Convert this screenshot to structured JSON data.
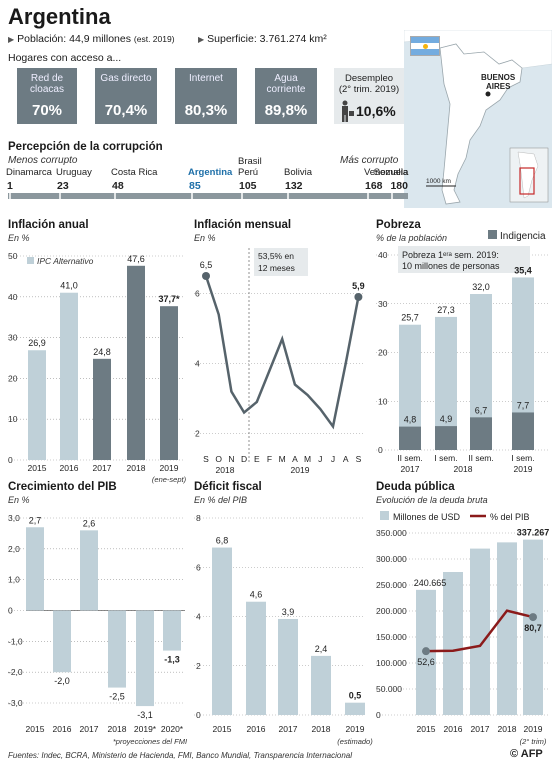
{
  "header": {
    "title": "Argentina",
    "population": "Población: 44,9 millones",
    "population_note": "(est. 2019)",
    "area": "Superficie: 3.761.274 km²",
    "access_title": "Hogares con acceso a..."
  },
  "access": [
    {
      "label": "Red de cloacas",
      "value": "70%"
    },
    {
      "label": "Gas directo",
      "value": "70,4%"
    },
    {
      "label": "Internet",
      "value": "80,3%"
    },
    {
      "label": "Agua corriente",
      "value": "89,8%"
    }
  ],
  "unemployment": {
    "label": "Desempleo",
    "period": "(2° trim. 2019)",
    "value": "10,6%"
  },
  "map": {
    "city": "BUENOS AIRES",
    "scale": "1000 km"
  },
  "corruption": {
    "title": "Percepción de la corrupción",
    "less": "Menos corrupto",
    "more": "Más corrupto",
    "countries": [
      {
        "name": "Dinamarca",
        "rank": "1"
      },
      {
        "name": "Uruguay",
        "rank": "23"
      },
      {
        "name": "Costa Rica",
        "rank": "48"
      },
      {
        "name": "Argentina",
        "rank": "85"
      },
      {
        "name": "Brasil",
        "name2": "Perú",
        "rank": "105"
      },
      {
        "name": "Bolivia",
        "rank": "132"
      },
      {
        "name": "Venezuela",
        "rank": "168"
      },
      {
        "name": "Somalia",
        "rank": "180"
      }
    ]
  },
  "colors": {
    "light": "#bfd0d8",
    "dark": "#6d7b83",
    "red": "#8b1a1a",
    "line": "#56636b",
    "highlight": "#1e6fa8"
  },
  "charts": {
    "inflacion_anual": {
      "title": "Inflación anual",
      "unit": "En %",
      "legend": "IPC Alternativo",
      "note": "(ene-sept)"
    },
    "inflacion_mensual": {
      "title": "Inflación mensual",
      "unit": "En %",
      "annotation": "53,5% en 12 meses",
      "year1": "2018",
      "year2": "2019"
    },
    "pobreza": {
      "title": "Pobreza",
      "unit": "% de la población",
      "legend": "Indigencia",
      "annotation": "Pobreza 1ᵉʳᵃ sem. 2019: 10 millones de personas"
    },
    "pib": {
      "title": "Crecimiento del PIB",
      "unit": "En %",
      "note": "*proyecciones del FMI"
    },
    "deficit": {
      "title": "Déficit fiscal",
      "unit": "En % del PIB",
      "note": "(estimado)"
    },
    "deuda": {
      "title": "Deuda pública",
      "unit": "Evolución de la deuda bruta",
      "legend_bars": "Millones de USD",
      "legend_line": "% del PIB",
      "note": "(2° trim)"
    }
  },
  "chart_data": [
    {
      "type": "bar",
      "title": "Inflación anual",
      "ylabel": "En %",
      "categories": [
        "2015",
        "2016",
        "2017",
        "2018",
        "2019"
      ],
      "values": [
        26.9,
        41.0,
        24.8,
        47.6,
        37.7
      ],
      "labels": [
        "26,9",
        "41,0",
        "24,8",
        "47,6",
        "37,7*"
      ],
      "ylim": [
        0,
        50
      ],
      "yticks": [
        "0",
        "10",
        "20",
        "30",
        "40",
        "50"
      ]
    },
    {
      "type": "line",
      "title": "Inflación mensual",
      "ylabel": "En %",
      "categories": [
        "S",
        "O",
        "N",
        "D",
        "E",
        "F",
        "M",
        "A",
        "M",
        "J",
        "J",
        "A",
        "S"
      ],
      "values": [
        6.5,
        5.4,
        3.2,
        2.6,
        2.9,
        3.8,
        4.7,
        3.4,
        3.1,
        2.7,
        2.2,
        4.0,
        5.9
      ],
      "labels": {
        "0": "6,5",
        "12": "5,9"
      },
      "ylim": [
        2,
        7
      ],
      "yticks": [
        "2",
        "4",
        "6"
      ]
    },
    {
      "type": "bar",
      "title": "Pobreza",
      "ylabel": "% de la población",
      "categories": [
        "II sem. 2017",
        "I sem. 2018",
        "II sem. 2018",
        "I sem. 2019"
      ],
      "cat_line1": [
        "II sem.",
        "I sem.",
        "II sem.",
        "I sem."
      ],
      "cat_line2": [
        "2017",
        "",
        "",
        "2019"
      ],
      "cat_year_mid": "2018",
      "series": [
        {
          "name": "Pobreza",
          "values": [
            25.7,
            27.3,
            32.0,
            35.4
          ],
          "labels": [
            "25,7",
            "27,3",
            "32,0",
            "35,4"
          ]
        },
        {
          "name": "Indigencia",
          "values": [
            4.8,
            4.9,
            6.7,
            7.7
          ],
          "labels": [
            "4,8",
            "4,9",
            "6,7",
            "7,7"
          ]
        }
      ],
      "ylim": [
        0,
        40
      ],
      "yticks": [
        "0",
        "10",
        "20",
        "30",
        "40"
      ]
    },
    {
      "type": "bar",
      "title": "Crecimiento del PIB",
      "ylabel": "En %",
      "categories": [
        "2015",
        "2016",
        "2017",
        "2018",
        "2019*",
        "2020*"
      ],
      "values": [
        2.7,
        -2.0,
        2.6,
        -2.5,
        -3.1,
        -1.3
      ],
      "labels": [
        "2,7",
        "-2,0",
        "2,6",
        "-2,5",
        "-3,1",
        "-1,3"
      ],
      "ylim": [
        -3.0,
        3.0
      ],
      "yticks": [
        "3,0",
        "2,0",
        "1,0",
        "0",
        "-1,0",
        "-2,0",
        "-3,0"
      ]
    },
    {
      "type": "bar",
      "title": "Déficit fiscal",
      "ylabel": "En % del PIB",
      "categories": [
        "2015",
        "2016",
        "2017",
        "2018",
        "2019"
      ],
      "values": [
        6.8,
        4.6,
        3.9,
        2.4,
        0.5
      ],
      "labels": [
        "6,8",
        "4,6",
        "3,9",
        "2,4",
        "0,5"
      ],
      "ylim": [
        0,
        8
      ],
      "yticks": [
        "0",
        "2",
        "4",
        "6",
        "8"
      ]
    },
    {
      "type": "bar",
      "title": "Deuda pública",
      "ylabel": "Evolución de la deuda bruta",
      "categories": [
        "2015",
        "2016",
        "2017",
        "2018",
        "2019"
      ],
      "series": [
        {
          "name": "Millones de USD",
          "values": [
            240665,
            275000,
            320000,
            332000,
            337267
          ],
          "labels": [
            "240.665",
            "",
            "",
            "",
            "337.267"
          ]
        },
        {
          "name": "% del PIB",
          "values": [
            52.6,
            53.0,
            57.0,
            86.0,
            80.7
          ],
          "labels": [
            "52,6",
            "",
            "",
            "",
            "80,7"
          ]
        }
      ],
      "ylim": [
        0,
        350000
      ],
      "yticks": [
        "0",
        "50.000",
        "100.000",
        "150.000",
        "200.000",
        "250.000",
        "300.000",
        "350.000"
      ]
    }
  ],
  "footer": {
    "sources": "Fuentes: Indec, BCRA, Ministerio de Hacienda, FMI, Banco Mundial, Transparencia Internacional",
    "logo": "© AFP"
  }
}
